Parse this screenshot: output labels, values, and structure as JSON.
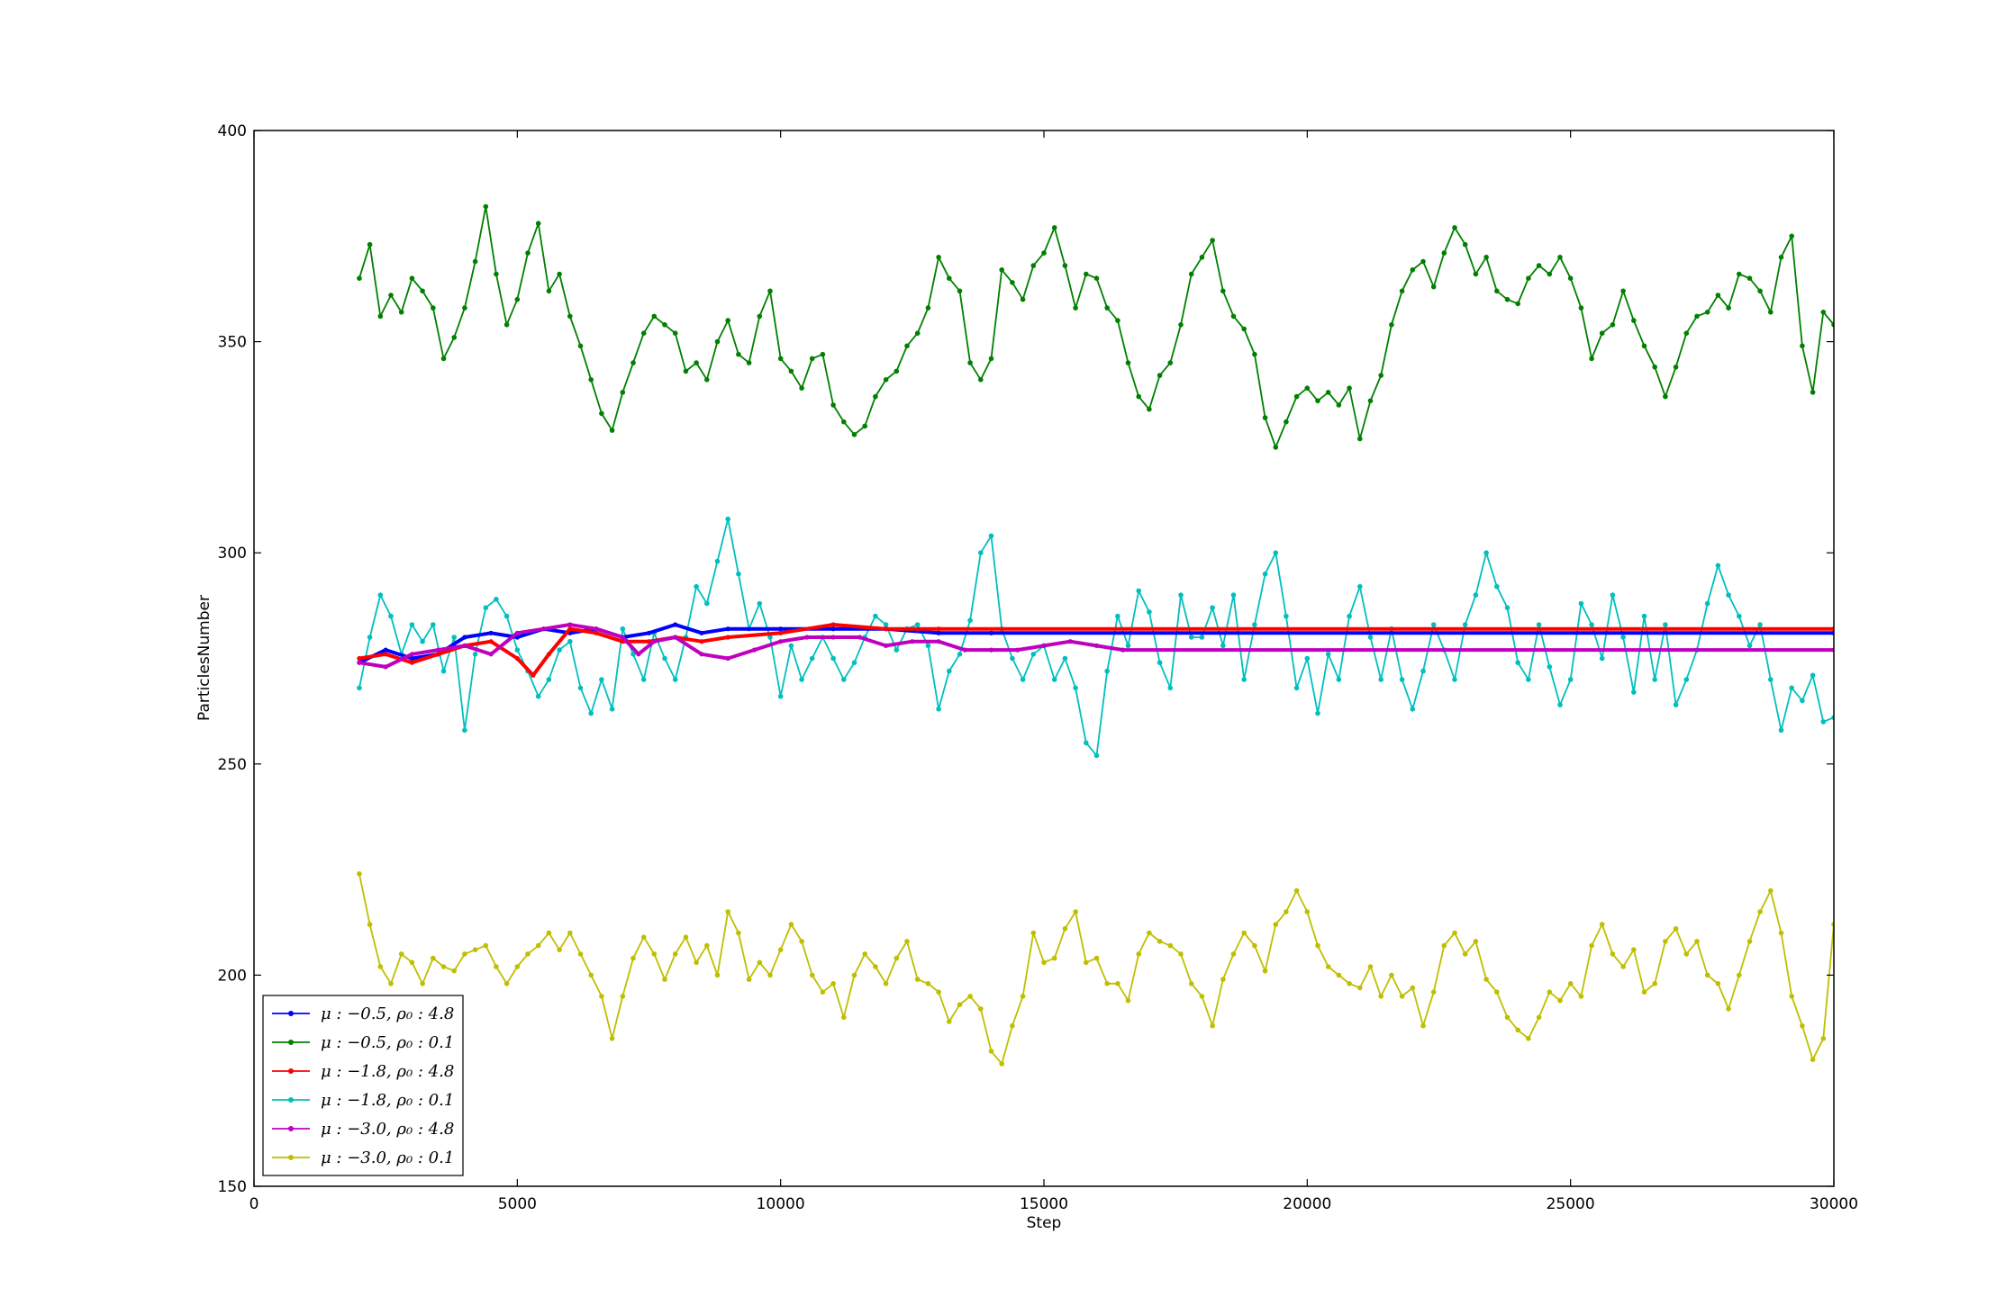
{
  "chart_data": {
    "type": "line",
    "title": "",
    "xlabel": "Step",
    "ylabel": "ParticlesNumber",
    "xlim": [
      0,
      30000
    ],
    "ylim": [
      150,
      400
    ],
    "xticks": [
      0,
      5000,
      10000,
      15000,
      20000,
      25000,
      30000
    ],
    "yticks": [
      150,
      200,
      250,
      300,
      350,
      400
    ],
    "xtick_labels": [
      "0",
      "5000",
      "10000",
      "15000",
      "20000",
      "25000",
      "30000"
    ],
    "ytick_labels": [
      "150",
      "200",
      "250",
      "300",
      "350",
      "400"
    ],
    "grid": false,
    "legend_position": "lower-left",
    "series": [
      {
        "name": "μ : −0.5, ρ₀ : 4.8",
        "color": "#0000ff",
        "marker": "dot",
        "x": [
          2000,
          2500,
          3000,
          3500,
          4000,
          4500,
          5000,
          5500,
          6000,
          6500,
          7000,
          7500,
          8000,
          8500,
          9000,
          10000,
          11000,
          12000,
          13000,
          14000,
          30000
        ],
        "y": [
          274,
          277,
          275,
          276,
          280,
          281,
          280,
          282,
          281,
          282,
          280,
          281,
          283,
          281,
          282,
          282,
          282,
          282,
          281,
          281,
          281
        ]
      },
      {
        "name": "μ : −0.5, ρ₀ : 0.1",
        "color": "#008000",
        "marker": "dot",
        "x": [
          2000,
          2200,
          2400,
          2600,
          2800,
          3000,
          3200,
          3400,
          3600,
          3800,
          4000,
          4200,
          4400,
          4600,
          4800,
          5000,
          5200,
          5400,
          5600,
          5800,
          6000,
          6200,
          6400,
          6600,
          6800,
          7000,
          7200,
          7400,
          7600,
          7800,
          8000,
          8200,
          8400,
          8600,
          8800,
          9000,
          9200,
          9400,
          9600,
          9800,
          10000,
          10200,
          10400,
          10600,
          10800,
          11000,
          11200,
          11400,
          11600,
          11800,
          12000,
          12200,
          12400,
          12600,
          12800,
          13000,
          13200,
          13400,
          13600,
          13800,
          14000,
          14200,
          14400,
          14600,
          14800,
          15000,
          15200,
          15400,
          15600,
          15800,
          16000,
          16200,
          16400,
          16600,
          16800,
          17000,
          17200,
          17400,
          17600,
          17800,
          18000,
          18200,
          18400,
          18600,
          18800,
          19000,
          19200,
          19400,
          19600,
          19800,
          20000,
          20200,
          20400,
          20600,
          20800,
          21000,
          21200,
          21400,
          21600,
          21800,
          22000,
          22200,
          22400,
          22600,
          22800,
          23000,
          23200,
          23400,
          23600,
          23800,
          24000,
          24200,
          24400,
          24600,
          24800,
          25000,
          25200,
          25400,
          25600,
          25800,
          26000,
          26200,
          26400,
          26600,
          26800,
          27000,
          27200,
          27400,
          27600,
          27800,
          28000,
          28200,
          28400,
          28600,
          28800,
          29000,
          29200,
          29400,
          29600,
          29800,
          30000
        ],
        "y": [
          365,
          373,
          356,
          361,
          357,
          365,
          362,
          358,
          346,
          351,
          358,
          369,
          382,
          366,
          354,
          360,
          371,
          378,
          362,
          366,
          356,
          349,
          341,
          333,
          329,
          338,
          345,
          352,
          356,
          354,
          352,
          343,
          345,
          341,
          350,
          355,
          347,
          345,
          356,
          362,
          346,
          343,
          339,
          346,
          347,
          335,
          331,
          328,
          330,
          337,
          341,
          343,
          349,
          352,
          358,
          370,
          365,
          362,
          345,
          341,
          346,
          367,
          364,
          360,
          368,
          371,
          377,
          368,
          358,
          366,
          365,
          358,
          355,
          345,
          337,
          334,
          342,
          345,
          354,
          366,
          370,
          374,
          362,
          356,
          353,
          347,
          332,
          325,
          331,
          337,
          339,
          336,
          338,
          335,
          339,
          327,
          336,
          342,
          354,
          362,
          367,
          369,
          363,
          371,
          377,
          373,
          366,
          370,
          362,
          360,
          359,
          365,
          368,
          366,
          370,
          365,
          358,
          346,
          352,
          354,
          362,
          355,
          349,
          344,
          337,
          344,
          352,
          356,
          357,
          361,
          358,
          366,
          365,
          362,
          357,
          370,
          375,
          349,
          338,
          357,
          354
        ]
      },
      {
        "name": "μ : −1.8, ρ₀ : 4.8",
        "color": "#ff0000",
        "marker": "dot",
        "x": [
          2000,
          2500,
          3000,
          3500,
          4000,
          4500,
          5000,
          5300,
          5600,
          6000,
          6500,
          7000,
          7500,
          8000,
          8500,
          9000,
          10000,
          11000,
          12000,
          13000,
          30000
        ],
        "y": [
          275,
          276,
          274,
          276,
          278,
          279,
          275,
          271,
          276,
          282,
          281,
          279,
          279,
          280,
          279,
          280,
          281,
          283,
          282,
          282,
          282
        ]
      },
      {
        "name": "μ : −1.8, ρ₀ : 0.1",
        "color": "#00bfbf",
        "marker": "dot",
        "x": [
          2000,
          2200,
          2400,
          2600,
          2800,
          3000,
          3200,
          3400,
          3600,
          3800,
          4000,
          4200,
          4400,
          4600,
          4800,
          5000,
          5200,
          5400,
          5600,
          5800,
          6000,
          6200,
          6400,
          6600,
          6800,
          7000,
          7200,
          7400,
          7600,
          7800,
          8000,
          8200,
          8400,
          8600,
          8800,
          9000,
          9200,
          9400,
          9600,
          9800,
          10000,
          10200,
          10400,
          10600,
          10800,
          11000,
          11200,
          11400,
          11600,
          11800,
          12000,
          12200,
          12400,
          12600,
          12800,
          13000,
          13200,
          13400,
          13600,
          13800,
          14000,
          14200,
          14400,
          14600,
          14800,
          15000,
          15200,
          15400,
          15600,
          15800,
          16000,
          16200,
          16400,
          16600,
          16800,
          17000,
          17200,
          17400,
          17600,
          17800,
          18000,
          18200,
          18400,
          18600,
          18800,
          19000,
          19200,
          19400,
          19600,
          19800,
          20000,
          20200,
          20400,
          20600,
          20800,
          21000,
          21200,
          21400,
          21600,
          21800,
          22000,
          22200,
          22400,
          22600,
          22800,
          23000,
          23200,
          23400,
          23600,
          23800,
          24000,
          24200,
          24400,
          24600,
          24800,
          25000,
          25200,
          25400,
          25600,
          25800,
          26000,
          26200,
          26400,
          26600,
          26800,
          27000,
          27200,
          27400,
          27600,
          27800,
          28000,
          28200,
          28400,
          28600,
          28800,
          29000,
          29200,
          29400,
          29600,
          29800,
          30000
        ],
        "y": [
          268,
          280,
          290,
          285,
          276,
          283,
          279,
          283,
          272,
          280,
          258,
          276,
          287,
          289,
          285,
          277,
          272,
          266,
          270,
          277,
          279,
          268,
          262,
          270,
          263,
          282,
          276,
          270,
          281,
          275,
          270,
          280,
          292,
          288,
          298,
          308,
          295,
          282,
          288,
          280,
          266,
          278,
          270,
          275,
          280,
          275,
          270,
          274,
          280,
          285,
          283,
          277,
          282,
          283,
          278,
          263,
          272,
          276,
          284,
          300,
          304,
          282,
          275,
          270,
          276,
          278,
          270,
          275,
          268,
          255,
          252,
          272,
          285,
          278,
          291,
          286,
          274,
          268,
          290,
          280,
          280,
          287,
          278,
          290,
          270,
          283,
          295,
          300,
          285,
          268,
          275,
          262,
          276,
          270,
          285,
          292,
          280,
          270,
          282,
          270,
          263,
          272,
          283,
          277,
          270,
          283,
          290,
          300,
          292,
          287,
          274,
          270,
          283,
          273,
          264,
          270,
          288,
          283,
          275,
          290,
          280,
          267,
          285,
          270,
          283,
          264,
          270,
          277,
          288,
          297,
          290,
          285,
          278,
          283,
          270,
          258,
          268,
          265,
          271,
          260,
          261
        ]
      },
      {
        "name": "μ : −3.0, ρ₀ : 4.8",
        "color": "#bf00bf",
        "marker": "dot",
        "x": [
          2000,
          2500,
          3000,
          3500,
          4000,
          4500,
          5000,
          5500,
          6000,
          6500,
          7000,
          7300,
          7600,
          8000,
          8500,
          9000,
          9500,
          10000,
          10500,
          11000,
          11500,
          12000,
          12500,
          13000,
          13500,
          14000,
          14500,
          15000,
          15500,
          16000,
          16500,
          30000
        ],
        "y": [
          274,
          273,
          276,
          277,
          278,
          276,
          281,
          282,
          283,
          282,
          280,
          276,
          279,
          280,
          276,
          275,
          277,
          279,
          280,
          280,
          280,
          278,
          279,
          279,
          277,
          277,
          277,
          278,
          279,
          278,
          277,
          277
        ]
      },
      {
        "name": "μ : −3.0, ρ₀ : 0.1",
        "color": "#bfbf00",
        "marker": "dot",
        "x": [
          2000,
          2200,
          2400,
          2600,
          2800,
          3000,
          3200,
          3400,
          3600,
          3800,
          4000,
          4200,
          4400,
          4600,
          4800,
          5000,
          5200,
          5400,
          5600,
          5800,
          6000,
          6200,
          6400,
          6600,
          6800,
          7000,
          7200,
          7400,
          7600,
          7800,
          8000,
          8200,
          8400,
          8600,
          8800,
          9000,
          9200,
          9400,
          9600,
          9800,
          10000,
          10200,
          10400,
          10600,
          10800,
          11000,
          11200,
          11400,
          11600,
          11800,
          12000,
          12200,
          12400,
          12600,
          12800,
          13000,
          13200,
          13400,
          13600,
          13800,
          14000,
          14200,
          14400,
          14600,
          14800,
          15000,
          15200,
          15400,
          15600,
          15800,
          16000,
          16200,
          16400,
          16600,
          16800,
          17000,
          17200,
          17400,
          17600,
          17800,
          18000,
          18200,
          18400,
          18600,
          18800,
          19000,
          19200,
          19400,
          19600,
          19800,
          20000,
          20200,
          20400,
          20600,
          20800,
          21000,
          21200,
          21400,
          21600,
          21800,
          22000,
          22200,
          22400,
          22600,
          22800,
          23000,
          23200,
          23400,
          23600,
          23800,
          24000,
          24200,
          24400,
          24600,
          24800,
          25000,
          25200,
          25400,
          25600,
          25800,
          26000,
          26200,
          26400,
          26600,
          26800,
          27000,
          27200,
          27400,
          27600,
          27800,
          28000,
          28200,
          28400,
          28600,
          28800,
          29000,
          29200,
          29400,
          29600,
          29800,
          30000
        ],
        "y": [
          224,
          212,
          202,
          198,
          205,
          203,
          198,
          204,
          202,
          201,
          205,
          206,
          207,
          202,
          198,
          202,
          205,
          207,
          210,
          206,
          210,
          205,
          200,
          195,
          185,
          195,
          204,
          209,
          205,
          199,
          205,
          209,
          203,
          207,
          200,
          215,
          210,
          199,
          203,
          200,
          206,
          212,
          208,
          200,
          196,
          198,
          190,
          200,
          205,
          202,
          198,
          204,
          208,
          199,
          198,
          196,
          189,
          193,
          195,
          192,
          182,
          179,
          188,
          195,
          210,
          203,
          204,
          211,
          215,
          203,
          204,
          198,
          198,
          194,
          205,
          210,
          208,
          207,
          205,
          198,
          195,
          188,
          199,
          205,
          210,
          207,
          201,
          212,
          215,
          220,
          215,
          207,
          202,
          200,
          198,
          197,
          202,
          195,
          200,
          195,
          197,
          188,
          196,
          207,
          210,
          205,
          208,
          199,
          196,
          190,
          187,
          185,
          190,
          196,
          194,
          198,
          195,
          207,
          212,
          205,
          202,
          206,
          196,
          198,
          208,
          211,
          205,
          208,
          200,
          198,
          192,
          200,
          208,
          215,
          220,
          210,
          195,
          188,
          180,
          185,
          212
        ]
      }
    ]
  }
}
